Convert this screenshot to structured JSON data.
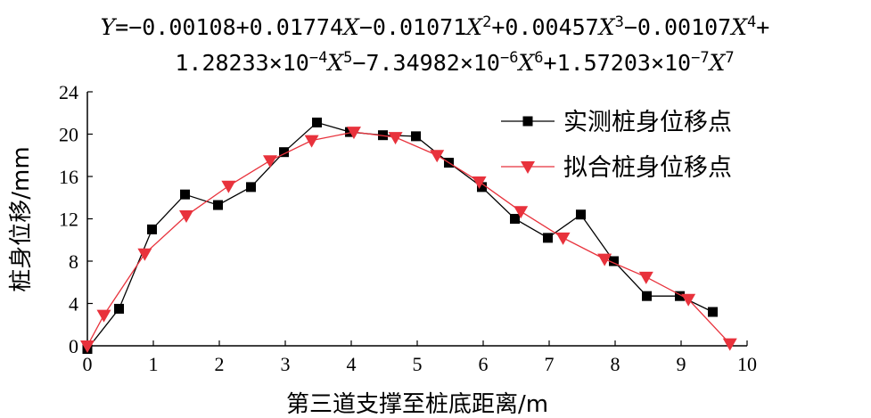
{
  "chart_data": {
    "type": "line",
    "title_lines": [
      [
        {
          "t": "Y",
          "v": 1
        },
        {
          "t": "=−0.00108+0.01774"
        },
        {
          "t": "X",
          "v": 1
        },
        {
          "t": "−0.01071"
        },
        {
          "t": "X",
          "v": 1
        },
        {
          "t": "2",
          "sup": 1
        },
        {
          "t": "+0.00457"
        },
        {
          "t": "X",
          "v": 1
        },
        {
          "t": "3",
          "sup": 1
        },
        {
          "t": "−0.00107"
        },
        {
          "t": "X",
          "v": 1
        },
        {
          "t": "4",
          "sup": 1
        },
        {
          "t": "+"
        }
      ],
      [
        {
          "t": "1.28233×10"
        },
        {
          "t": "−4",
          "sup": 1
        },
        {
          "t": "X",
          "v": 1
        },
        {
          "t": "5",
          "sup": 1
        },
        {
          "t": "−7.34982×10"
        },
        {
          "t": "−6",
          "sup": 1
        },
        {
          "t": "X",
          "v": 1
        },
        {
          "t": "6",
          "sup": 1
        },
        {
          "t": "+1.57203×10"
        },
        {
          "t": "−7",
          "sup": 1
        },
        {
          "t": "X",
          "v": 1
        },
        {
          "t": "7",
          "sup": 1
        }
      ]
    ],
    "xlabel": "第三道支撑至桩底距离/m",
    "ylabel": "桩身位移/mm",
    "xlim": [
      0,
      10
    ],
    "ylim": [
      0,
      24
    ],
    "xticks": [
      0,
      1,
      2,
      3,
      4,
      5,
      6,
      7,
      8,
      9,
      10
    ],
    "yticks": [
      0,
      4,
      8,
      12,
      16,
      20,
      24
    ],
    "grid": false,
    "legend_position": "top-right",
    "series": [
      {
        "name": "实测桩身位移点",
        "marker": "square",
        "color": "#000000",
        "x": [
          0,
          0.48,
          0.98,
          1.48,
          1.98,
          2.48,
          2.98,
          3.48,
          3.98,
          4.48,
          4.98,
          5.48,
          5.98,
          6.48,
          6.98,
          7.48,
          7.98,
          8.48,
          8.98,
          9.48
        ],
        "y": [
          -0.3,
          3.5,
          11.0,
          14.3,
          13.3,
          15.0,
          18.3,
          21.1,
          20.2,
          19.9,
          19.8,
          17.3,
          15.0,
          12.0,
          10.2,
          12.4,
          8.0,
          4.7,
          4.7,
          3.2
        ]
      },
      {
        "name": "拟合桩身位移点",
        "marker": "triangle-down",
        "color": "#e8323c",
        "x": [
          0,
          0.25,
          0.87,
          1.5,
          2.14,
          2.77,
          3.4,
          4.04,
          4.67,
          5.3,
          5.94,
          6.57,
          7.21,
          7.84,
          8.47,
          9.11,
          9.74
        ],
        "y": [
          0,
          2.9,
          8.7,
          12.3,
          15.1,
          17.5,
          19.4,
          20.2,
          19.7,
          18.0,
          15.5,
          12.7,
          10.2,
          8.2,
          6.5,
          4.4,
          0.2
        ]
      }
    ]
  }
}
